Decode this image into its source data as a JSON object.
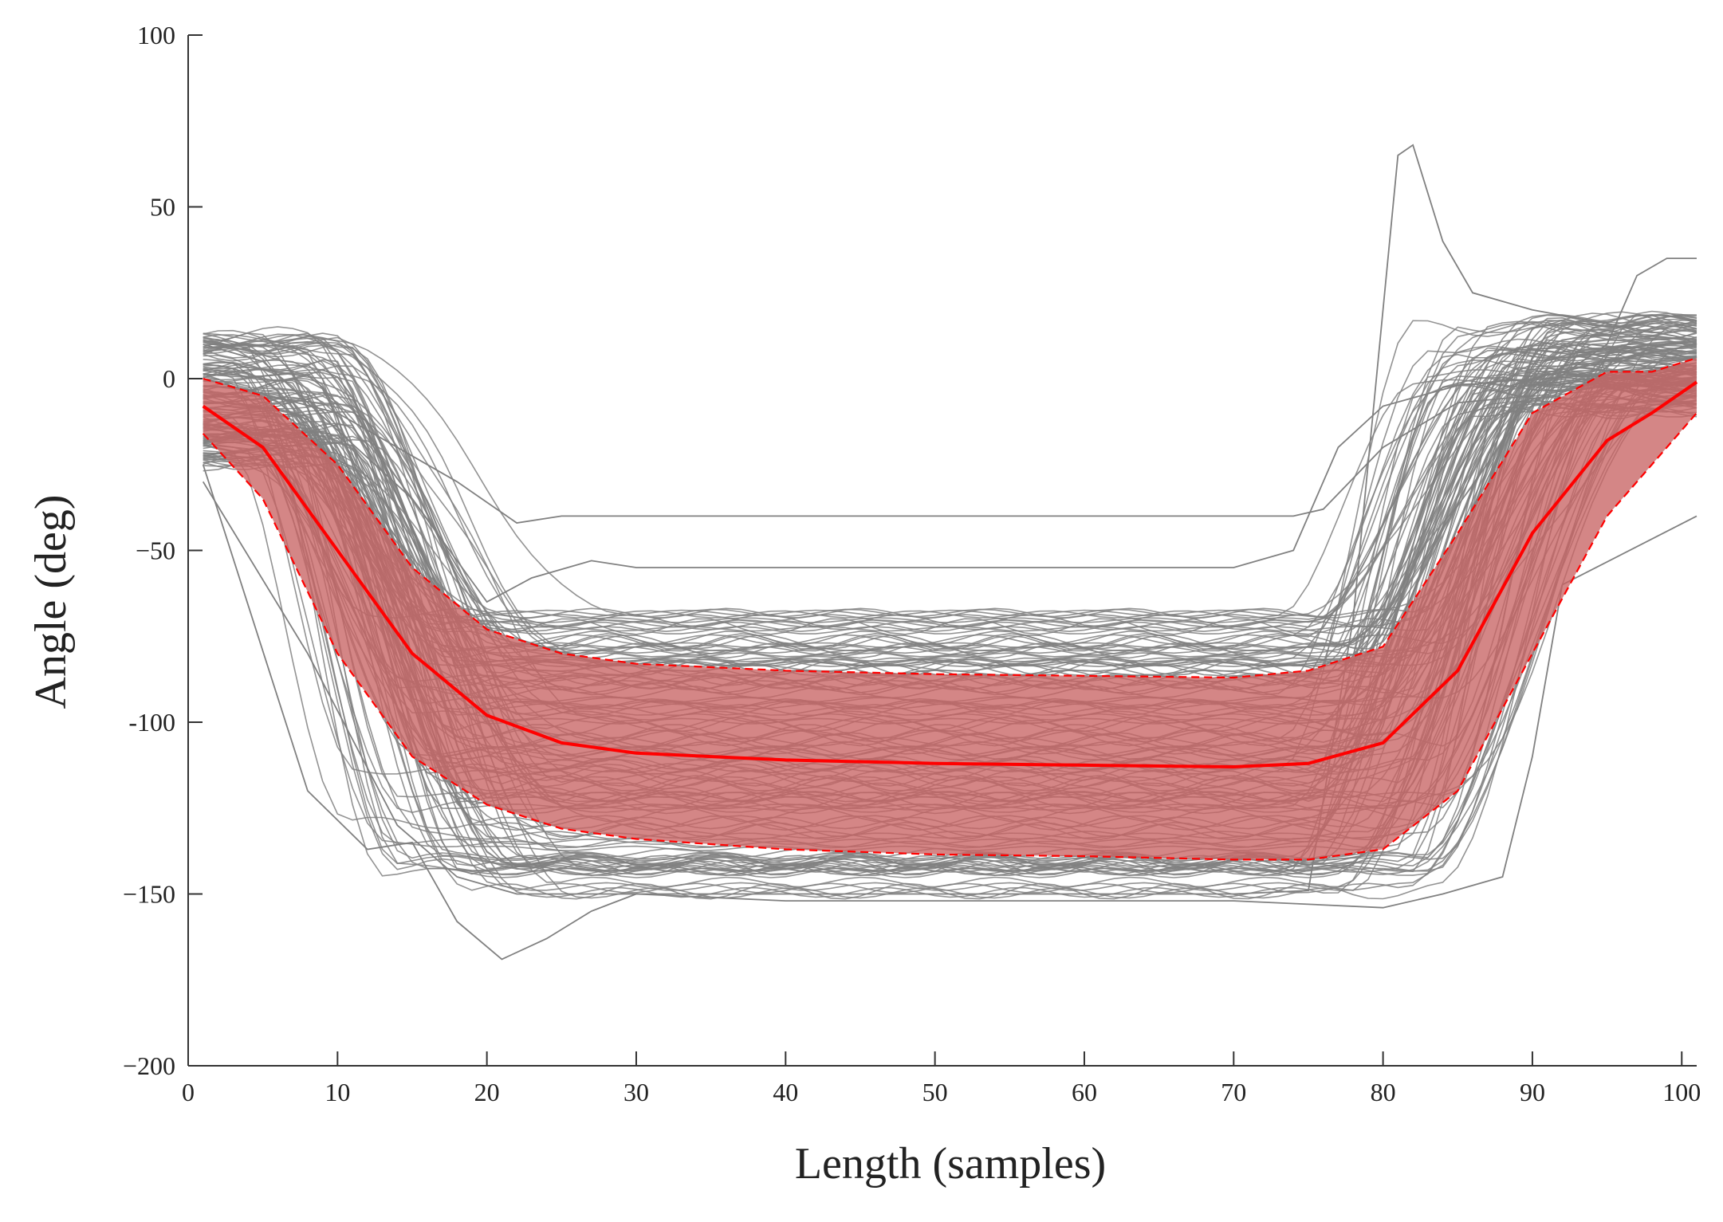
{
  "chart_data": {
    "type": "line",
    "title": "",
    "xlabel": "Length (samples)",
    "ylabel": "Angle (deg)",
    "xlim": [
      0,
      101
    ],
    "ylim": [
      -200,
      100
    ],
    "xticks": [
      "0",
      "10",
      "20",
      "30",
      "40",
      "50",
      "60",
      "70",
      "80",
      "90",
      "100"
    ],
    "yticks": [
      "100",
      "50",
      "0",
      "−50",
      "-100",
      "−150",
      "−200"
    ],
    "grid": false,
    "legend": "none",
    "colors": {
      "individual_trials": "#808080",
      "mean": "#ff0000",
      "band_fill": "#c86464",
      "band_edge": "#ff0000"
    },
    "mean": {
      "x": [
        1,
        5,
        10,
        15,
        20,
        25,
        30,
        40,
        50,
        60,
        70,
        75,
        80,
        85,
        90,
        95,
        98,
        101
      ],
      "y": [
        -8,
        -20,
        -50,
        -80,
        -98,
        -106,
        -109,
        -111,
        -112,
        -112.5,
        -113,
        -112,
        -106,
        -85,
        -45,
        -18,
        -10,
        -1
      ]
    },
    "band_upper": {
      "x": [
        1,
        5,
        10,
        15,
        20,
        25,
        30,
        40,
        50,
        60,
        70,
        75,
        80,
        85,
        90,
        95,
        98,
        101
      ],
      "y": [
        0,
        -5,
        -25,
        -55,
        -73,
        -80,
        -83,
        -85,
        -86,
        -86.5,
        -87,
        -85,
        -78,
        -45,
        -10,
        2,
        2,
        6
      ]
    },
    "band_lower": {
      "x": [
        1,
        5,
        10,
        15,
        20,
        25,
        30,
        40,
        50,
        60,
        70,
        75,
        80,
        85,
        90,
        95,
        98,
        101
      ],
      "y": [
        -16,
        -35,
        -80,
        -110,
        -124,
        -131,
        -134,
        -137,
        -138.5,
        -139,
        -140,
        -140,
        -137,
        -120,
        -80,
        -40,
        -25,
        -10
      ]
    },
    "notable_trials": [
      {
        "x": [
          1,
          8,
          12,
          15,
          18,
          21,
          24,
          27,
          30,
          40,
          50,
          60,
          70,
          75,
          78,
          81,
          82,
          84,
          86,
          90,
          100,
          101
        ],
        "y": [
          -25,
          -120,
          -137,
          -135,
          -158,
          -169,
          -163,
          -155,
          -150,
          -150,
          -150,
          -150,
          -150,
          -149,
          -70,
          65,
          68,
          40,
          25,
          20,
          12,
          10
        ]
      },
      {
        "x": [
          1,
          10,
          18,
          22,
          25,
          30,
          40,
          50,
          60,
          70,
          74,
          76,
          80,
          85,
          90,
          95,
          97,
          99,
          101
        ],
        "y": [
          0,
          -10,
          -30,
          -42,
          -40,
          -40,
          -40,
          -40,
          -40,
          -40,
          -40,
          -38,
          -20,
          -7,
          -5,
          10,
          30,
          35,
          35
        ]
      },
      {
        "x": [
          1,
          5,
          10,
          15,
          20,
          23,
          27,
          30,
          40,
          50,
          60,
          70,
          74,
          77,
          80,
          85,
          90,
          95,
          101
        ],
        "y": [
          10,
          5,
          -15,
          -35,
          -65,
          -58,
          -53,
          -55,
          -55,
          -55,
          -55,
          -55,
          -50,
          -20,
          -8,
          -2,
          0,
          5,
          10
        ]
      },
      {
        "x": [
          1,
          8,
          14,
          18,
          22,
          26,
          30,
          40,
          50,
          60,
          70,
          75,
          80,
          84,
          88,
          90,
          92,
          101
        ],
        "y": [
          -30,
          -80,
          -130,
          -145,
          -150,
          -150,
          -150,
          -152,
          -152,
          -152,
          -152,
          -153,
          -154,
          -150,
          -145,
          -110,
          -60,
          -40
        ]
      }
    ]
  }
}
